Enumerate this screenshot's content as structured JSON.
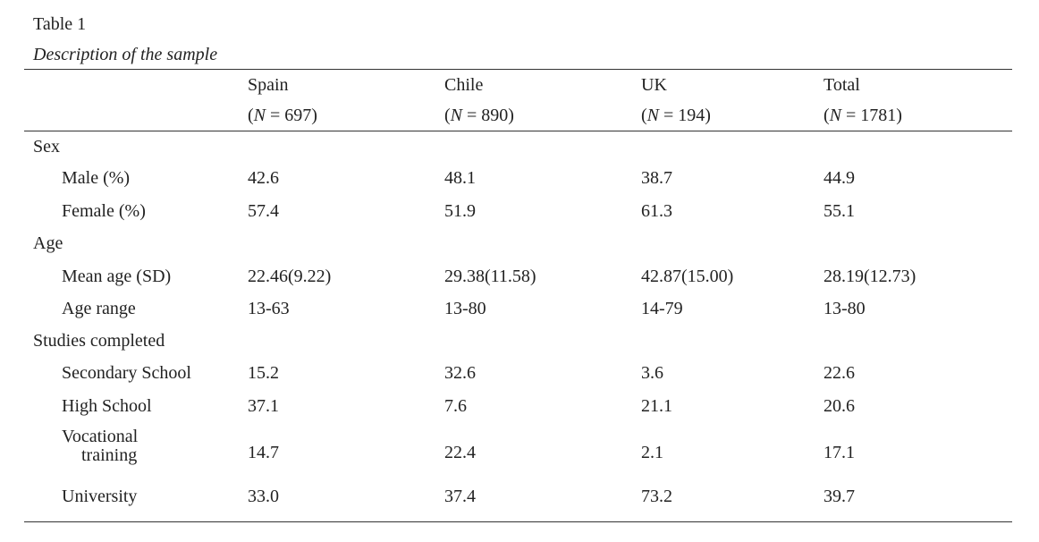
{
  "table": {
    "label": "Table 1",
    "caption": "Description of the sample",
    "columns": [
      {
        "name": "Spain",
        "n_prefix": "(",
        "n_symbol": "N",
        "n_value": " = 697)"
      },
      {
        "name": "Chile",
        "n_prefix": "(",
        "n_symbol": "N",
        "n_value": " = 890)"
      },
      {
        "name": "UK",
        "n_prefix": "(",
        "n_symbol": "N",
        "n_value": " = 194)"
      },
      {
        "name": "Total",
        "n_prefix": "(",
        "n_symbol": "N",
        "n_value": " = 1781)"
      }
    ],
    "sections": [
      {
        "label": "Sex",
        "rows": [
          {
            "label": "Male (%)",
            "values": [
              "42.6",
              "48.1",
              "38.7",
              "44.9"
            ]
          },
          {
            "label": "Female (%)",
            "values": [
              "57.4",
              "51.9",
              "61.3",
              "55.1"
            ]
          }
        ]
      },
      {
        "label": "Age",
        "rows": [
          {
            "label": "Mean age (SD)",
            "values": [
              "22.46(9.22)",
              "29.38(11.58)",
              "42.87(15.00)",
              "28.19(12.73)"
            ]
          },
          {
            "label": "Age range",
            "values": [
              "13-63",
              "13-80",
              "14-79",
              "13-80"
            ]
          }
        ]
      },
      {
        "label": "Studies completed",
        "rows": [
          {
            "label": "Secondary School",
            "values": [
              "15.2",
              "32.6",
              "3.6",
              "22.6"
            ]
          },
          {
            "label": "High School",
            "values": [
              "37.1",
              "7.6",
              "21.1",
              "20.6"
            ]
          },
          {
            "label_line1": "Vocational",
            "label_line2": "training",
            "values": [
              "14.7",
              "22.4",
              "2.1",
              "17.1"
            ]
          },
          {
            "label": "University",
            "values": [
              "33.0",
              "37.4",
              "73.2",
              "39.7"
            ]
          }
        ]
      }
    ]
  }
}
